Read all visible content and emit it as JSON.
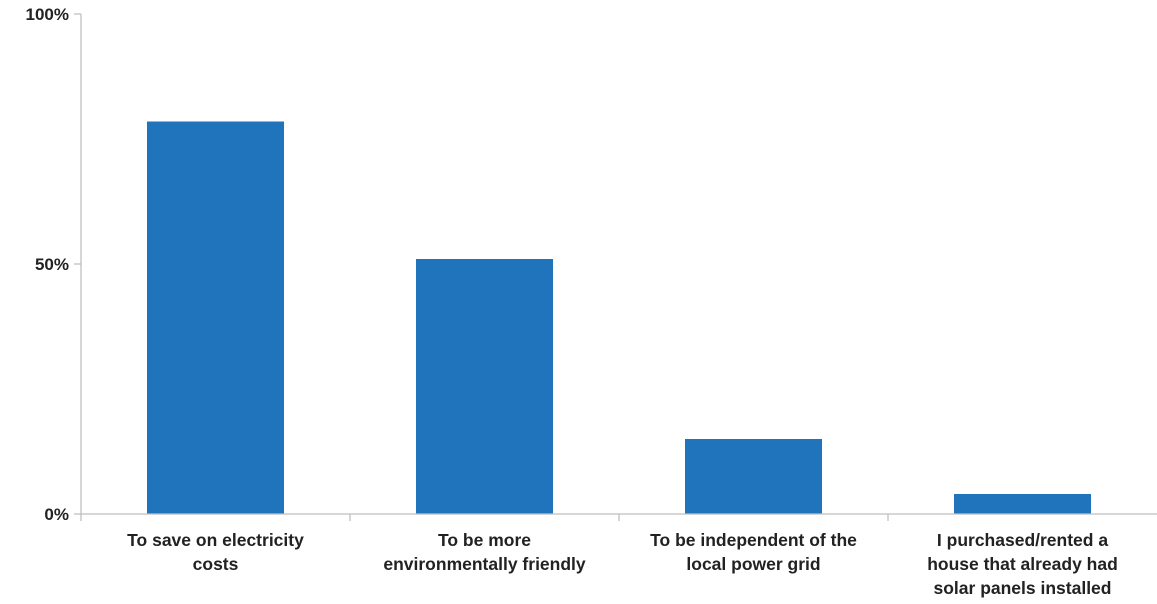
{
  "chart_data": {
    "type": "bar",
    "title": "",
    "xlabel": "",
    "ylabel": "",
    "ylim": [
      0,
      100
    ],
    "y_unit": "%",
    "yticks": [
      0,
      50,
      100
    ],
    "ytick_labels": [
      "0%",
      "50%",
      "100%"
    ],
    "grid": false,
    "categories": [
      "To save on electricity costs",
      "To be more environmentally friendly",
      "To be independent of the local power grid",
      "I purchased/rented a house that already had solar panels installed"
    ],
    "category_label_lines": [
      [
        "To save on electricity",
        "costs"
      ],
      [
        "To be more",
        "environmentally friendly"
      ],
      [
        "To be independent of the",
        "local power grid"
      ],
      [
        "I purchased/rented a",
        "house that already had",
        "solar panels installed"
      ]
    ],
    "values": [
      78.5,
      51,
      15,
      4
    ],
    "colors": {
      "bar": "#1f74bb",
      "axis": "#bfbfbf",
      "text": "#222222"
    }
  }
}
